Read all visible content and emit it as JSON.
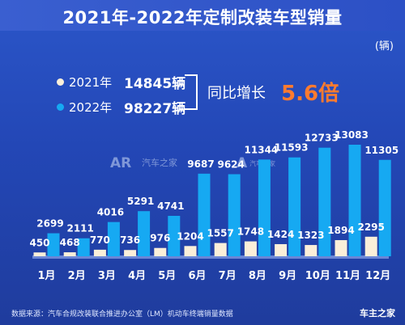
{
  "title": "2021年-2022年定制改装车型销量",
  "unit": "(辆)",
  "legend": [
    {
      "year": "2021年",
      "total": "14845辆",
      "color": "#fbefd9"
    },
    {
      "year": "2022年",
      "total": "98227辆",
      "color": "#16a9f2"
    }
  ],
  "growth": {
    "label": "同比增长",
    "value": "5.6倍"
  },
  "watermark": {
    "left": "汽车之家",
    "right": "汽车之家"
  },
  "footer": {
    "source": "数据来源：汽车合规改装联合推进办公室（LM）机动车终端销量数据",
    "logo": "车主之家"
  },
  "chart_data": {
    "type": "bar",
    "categories": [
      "1月",
      "2月",
      "3月",
      "4月",
      "5月",
      "6月",
      "7月",
      "8月",
      "9月",
      "10月",
      "11月",
      "12月"
    ],
    "series": [
      {
        "name": "2021年",
        "values": [
          450,
          468,
          770,
          736,
          976,
          1204,
          1557,
          1748,
          1424,
          1323,
          1894,
          2295
        ]
      },
      {
        "name": "2022年",
        "values": [
          2699,
          2111,
          4016,
          5291,
          4741,
          9687,
          9624,
          11344,
          11593,
          12733,
          13083,
          11305
        ]
      }
    ]
  }
}
